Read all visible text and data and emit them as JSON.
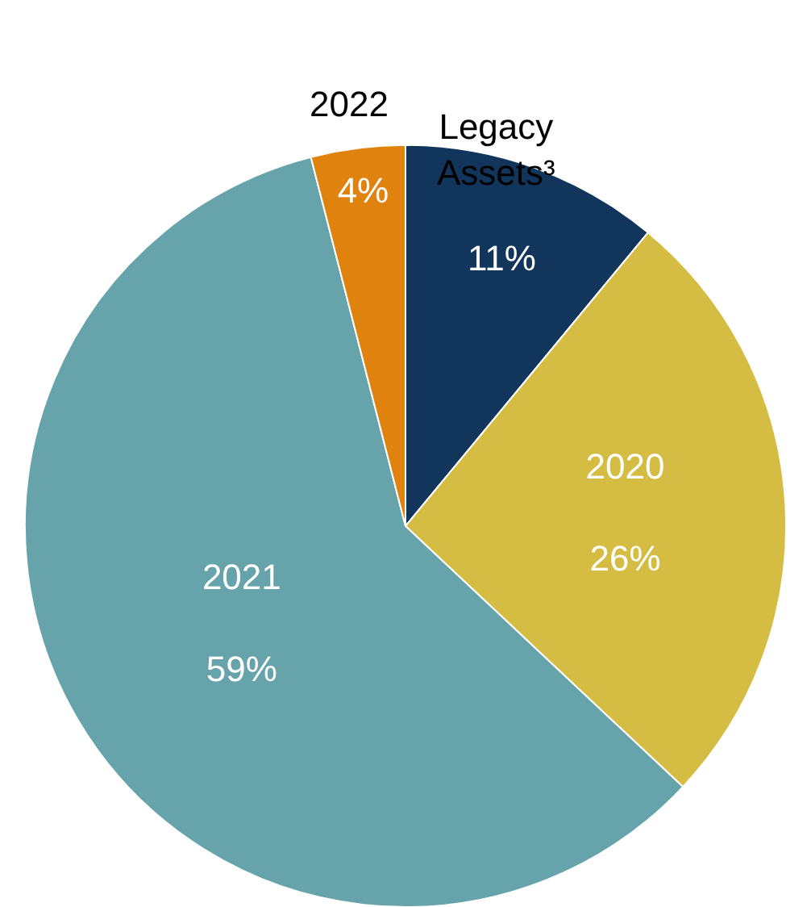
{
  "chart_data": {
    "type": "pie",
    "categories": [
      "Legacy Assets³",
      "2020",
      "2021",
      "2022"
    ],
    "values": [
      11,
      26,
      59,
      4
    ],
    "value_labels": [
      "11%",
      "26%",
      "59%",
      "4%"
    ],
    "colors": [
      "#12355b",
      "#d4bd42",
      "#66a3ab",
      "#e0820e"
    ],
    "legend": false
  }
}
